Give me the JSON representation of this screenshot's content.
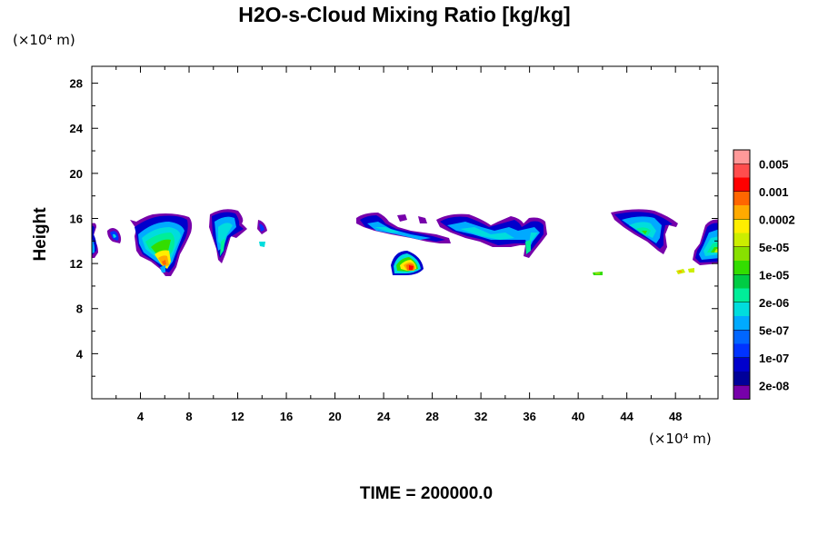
{
  "chart_data": {
    "type": "contour",
    "title": "H2O-s-Cloud Mixing Ratio [kg/kg]",
    "xlabel": "",
    "ylabel": "Height",
    "x_unit_label": "(×10⁴ m)",
    "y_unit_label": "(×10⁴ m)",
    "footer": "TIME = 200000.0",
    "xlim": [
      0,
      51.5
    ],
    "ylim": [
      0,
      29.5
    ],
    "x_ticks": [
      4,
      8,
      12,
      16,
      20,
      24,
      28,
      32,
      36,
      40,
      44,
      48
    ],
    "y_ticks": [
      4,
      8,
      12,
      16,
      20,
      24,
      28
    ],
    "grid": false,
    "colorbar": {
      "labels": [
        "0.005",
        "0.001",
        "0.0002",
        "5e-05",
        "1e-05",
        "2e-06",
        "5e-07",
        "1e-07",
        "2e-08"
      ],
      "colors": [
        "#ff9999",
        "#ff4d4d",
        "#ff0000",
        "#ff6600",
        "#ffaa00",
        "#ffee00",
        "#ccee00",
        "#88e000",
        "#33dd00",
        "#00cc44",
        "#00ee99",
        "#00dddd",
        "#00aaff",
        "#0066ff",
        "#0033ff",
        "#0000cc",
        "#000099",
        "#7700aa"
      ]
    },
    "cloud_regions": [
      {
        "x": [
          -0.5,
          0.3
        ],
        "y": [
          12.5,
          16.0
        ],
        "max_level": "5e-07"
      },
      {
        "x": [
          1.3,
          2.5
        ],
        "y": [
          14.2,
          15.6
        ],
        "max_level": "5e-07"
      },
      {
        "x": [
          3.3,
          8.3
        ],
        "y": [
          11.0,
          16.2
        ],
        "max_level": "0.0002"
      },
      {
        "x": [
          9.7,
          12.8
        ],
        "y": [
          12.3,
          17.0
        ],
        "max_level": "2e-06"
      },
      {
        "x": [
          13.8,
          14.8
        ],
        "y": [
          13.6,
          15.6
        ],
        "max_level": "5e-07"
      },
      {
        "x": [
          21.5,
          29.0
        ],
        "y": [
          13.8,
          16.2
        ],
        "max_level": "5e-07"
      },
      {
        "x": [
          24.0,
          27.0
        ],
        "y": [
          11.3,
          13.6
        ],
        "max_level": "0.001"
      },
      {
        "x": [
          28.3,
          37.5
        ],
        "y": [
          13.0,
          16.3
        ],
        "max_level": "2e-06"
      },
      {
        "x": [
          41.0,
          41.8
        ],
        "y": [
          11.1,
          11.5
        ],
        "max_level": "5e-05"
      },
      {
        "x": [
          42.5,
          47.3
        ],
        "y": [
          12.5,
          16.8
        ],
        "max_level": "2e-06"
      },
      {
        "x": [
          47.5,
          49.5
        ],
        "y": [
          11.2,
          11.8
        ],
        "max_level": "0.0002"
      },
      {
        "x": [
          49.5,
          51.5
        ],
        "y": [
          11.7,
          15.7
        ],
        "max_level": "5e-05"
      }
    ]
  }
}
